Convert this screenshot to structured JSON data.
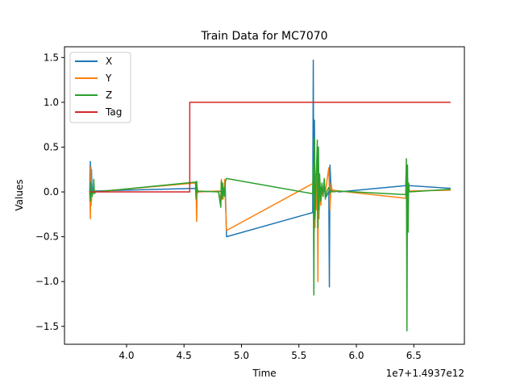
{
  "chart_data": {
    "type": "line",
    "title": "Train Data for MC7070",
    "xlabel": "Time",
    "ylabel": "Values",
    "x_offset_label": "1e7+1.4937e12",
    "xlim": [
      3.46,
      6.94
    ],
    "ylim": [
      -1.7,
      1.62
    ],
    "xticks": [
      4.0,
      4.5,
      5.0,
      5.5,
      6.0,
      6.5
    ],
    "xtick_labels": [
      "4.0",
      "4.5",
      "5.0",
      "5.5",
      "6.0",
      "6.5"
    ],
    "yticks": [
      -1.5,
      -1.0,
      -0.5,
      0.0,
      0.5,
      1.0,
      1.5
    ],
    "ytick_labels": [
      "−1.5",
      "−1.0",
      "−0.5",
      "0.0",
      "0.5",
      "1.0",
      "1.5"
    ],
    "legend_position": "top-left",
    "series": [
      {
        "name": "X",
        "color": "#1f77b4",
        "x": [
          3.68,
          3.685,
          3.69,
          3.695,
          3.7,
          3.72,
          4.6,
          4.605,
          4.61,
          4.615,
          4.62,
          4.8,
          4.83,
          4.835,
          4.84,
          4.845,
          4.85,
          4.855,
          4.86,
          4.87,
          5.62,
          5.625,
          5.63,
          5.635,
          5.64,
          5.65,
          5.66,
          5.67,
          5.68,
          5.69,
          5.7,
          5.72,
          5.74,
          5.76,
          5.765,
          5.77,
          5.78,
          5.79,
          5.8,
          5.85,
          6.43,
          6.435,
          6.44,
          6.445,
          6.45,
          6.46,
          6.82
        ],
        "y": [
          0.0,
          0.34,
          -0.15,
          0.25,
          0.0,
          0.01,
          0.04,
          -0.05,
          0.08,
          -0.02,
          0.0,
          0.01,
          0.0,
          0.05,
          -0.04,
          0.03,
          0.0,
          -0.03,
          0.02,
          -0.5,
          -0.23,
          1.47,
          -0.5,
          0.8,
          -0.1,
          0.02,
          -0.05,
          0.1,
          -0.08,
          0.05,
          0.0,
          0.02,
          -0.05,
          0.01,
          -1.06,
          0.3,
          0.01,
          0.0,
          0.02,
          0.0,
          0.07,
          0.3,
          -0.3,
          0.15,
          0.06,
          0.07,
          0.04
        ]
      },
      {
        "name": "Y",
        "color": "#ff7f0e",
        "x": [
          3.68,
          3.685,
          3.69,
          3.695,
          3.7,
          3.72,
          4.6,
          4.605,
          4.61,
          4.615,
          4.62,
          4.8,
          4.82,
          4.825,
          4.83,
          4.835,
          4.84,
          4.85,
          4.855,
          4.86,
          4.87,
          5.63,
          5.64,
          5.645,
          5.65,
          5.66,
          5.665,
          5.67,
          5.675,
          5.68,
          5.69,
          5.7,
          5.71,
          5.72,
          5.73,
          5.76,
          5.77,
          5.78,
          5.79,
          5.8,
          5.85,
          6.43,
          6.435,
          6.44,
          6.445,
          6.45,
          6.46,
          6.82
        ],
        "y": [
          0.0,
          -0.3,
          0.28,
          -0.1,
          0.0,
          0.0,
          0.1,
          0.02,
          -0.33,
          0.05,
          0.0,
          0.01,
          -0.1,
          0.14,
          -0.05,
          0.1,
          -0.08,
          0.05,
          0.14,
          -0.1,
          -0.43,
          0.1,
          -0.4,
          0.2,
          -0.2,
          0.15,
          -1.0,
          0.3,
          -0.3,
          0.1,
          -0.15,
          0.05,
          -0.05,
          0.1,
          0.0,
          0.27,
          -0.2,
          0.1,
          0.0,
          0.02,
          0.01,
          -0.07,
          0.2,
          -0.2,
          0.1,
          0.0,
          0.01,
          0.02
        ]
      },
      {
        "name": "Z",
        "color": "#2ca02c",
        "x": [
          3.68,
          3.685,
          3.69,
          3.7,
          3.71,
          3.715,
          3.72,
          3.73,
          4.6,
          4.605,
          4.61,
          4.615,
          4.62,
          4.8,
          4.82,
          4.825,
          4.83,
          4.835,
          4.84,
          4.85,
          4.855,
          4.86,
          4.87,
          5.62,
          5.625,
          5.63,
          5.635,
          5.64,
          5.66,
          5.665,
          5.67,
          5.675,
          5.68,
          5.69,
          5.7,
          5.71,
          5.72,
          5.73,
          5.74,
          5.76,
          5.77,
          5.78,
          5.8,
          5.85,
          6.43,
          6.435,
          6.44,
          6.445,
          6.45,
          6.455,
          6.46,
          6.82
        ],
        "y": [
          0.0,
          -0.1,
          0.1,
          -0.05,
          0.0,
          0.14,
          -0.02,
          0.0,
          0.11,
          -0.08,
          0.12,
          0.0,
          0.01,
          0.0,
          -0.17,
          0.12,
          -0.08,
          0.1,
          -0.05,
          0.05,
          -0.05,
          0.12,
          0.15,
          -0.02,
          0.3,
          -1.15,
          0.6,
          -0.3,
          0.58,
          -0.4,
          0.5,
          -0.2,
          0.2,
          -0.1,
          0.1,
          -0.05,
          0.15,
          -0.08,
          0.0,
          0.05,
          -0.02,
          0.02,
          0.0,
          0.01,
          -0.03,
          0.37,
          -1.55,
          0.3,
          -0.45,
          0.1,
          0.0,
          0.03
        ]
      },
      {
        "name": "Tag",
        "color": "#d62728",
        "x": [
          3.68,
          4.55,
          4.55,
          6.82
        ],
        "y": [
          0.0,
          0.0,
          1.0,
          1.0
        ]
      }
    ]
  }
}
